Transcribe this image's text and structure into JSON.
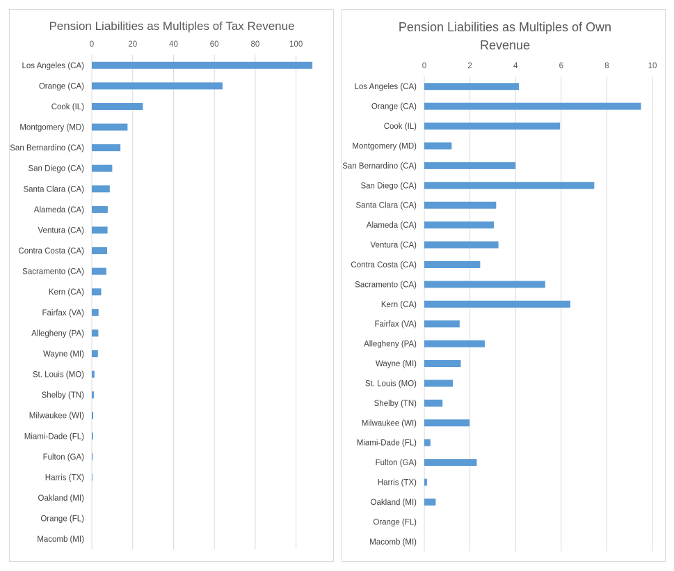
{
  "chart_data": [
    {
      "type": "bar",
      "orientation": "horizontal",
      "title": "Pension Liabilities as Multiples of Tax Revenue",
      "title_lines": [
        "Pension Liabilities as Multiples of Tax Revenue"
      ],
      "xlim": [
        0,
        110
      ],
      "xticks": [
        0,
        20,
        40,
        60,
        80,
        100
      ],
      "grid": true,
      "bar_color": "#5b9bd5",
      "categories": [
        "Los Angeles (CA)",
        "Orange (CA)",
        "Cook (IL)",
        "Montgomery (MD)",
        "San Bernardino (CA)",
        "San Diego (CA)",
        "Santa Clara (CA)",
        "Alameda (CA)",
        "Ventura (CA)",
        "Contra Costa (CA)",
        "Sacramento (CA)",
        "Kern (CA)",
        "Fairfax (VA)",
        "Allegheny (PA)",
        "Wayne (MI)",
        "St. Louis (MO)",
        "Shelby (TN)",
        "Milwaukee (WI)",
        "Miami-Dade (FL)",
        "Fulton (GA)",
        "Harris (TX)",
        "Oakland (MI)",
        "Orange (FL)",
        "Macomb (MI)"
      ],
      "values": [
        108,
        64,
        25,
        17.5,
        14,
        10,
        8.8,
        7.8,
        7.7,
        7.5,
        7.1,
        4.6,
        3.3,
        3.2,
        3.0,
        1.3,
        1.0,
        0.7,
        0.6,
        0.4,
        0.3,
        0,
        0,
        0
      ]
    },
    {
      "type": "bar",
      "orientation": "horizontal",
      "title": "Pension Liabilities as Multiples of Own Revenue",
      "title_lines": [
        "Pension Liabilities as Multiples of Own",
        "Revenue"
      ],
      "xlim": [
        0,
        10
      ],
      "xticks": [
        0,
        2,
        4,
        6,
        8,
        10
      ],
      "grid": true,
      "bar_color": "#5b9bd5",
      "categories": [
        "Los Angeles (CA)",
        "Orange (CA)",
        "Cook (IL)",
        "Montgomery (MD)",
        "San Bernardino (CA)",
        "San Diego (CA)",
        "Santa Clara (CA)",
        "Alameda (CA)",
        "Ventura (CA)",
        "Contra Costa (CA)",
        "Sacramento (CA)",
        "Kern (CA)",
        "Fairfax (VA)",
        "Allegheny (PA)",
        "Wayne (MI)",
        "St. Louis (MO)",
        "Shelby (TN)",
        "Milwaukee (WI)",
        "Miami-Dade (FL)",
        "Fulton (GA)",
        "Harris (TX)",
        "Oakland (MI)",
        "Orange (FL)",
        "Macomb (MI)"
      ],
      "values": [
        4.15,
        9.5,
        5.95,
        1.2,
        4.0,
        7.45,
        3.15,
        3.05,
        3.25,
        2.45,
        5.3,
        6.4,
        1.55,
        2.65,
        1.6,
        1.25,
        0.8,
        1.98,
        0.27,
        2.3,
        0.12,
        0.5,
        0,
        0
      ]
    }
  ]
}
